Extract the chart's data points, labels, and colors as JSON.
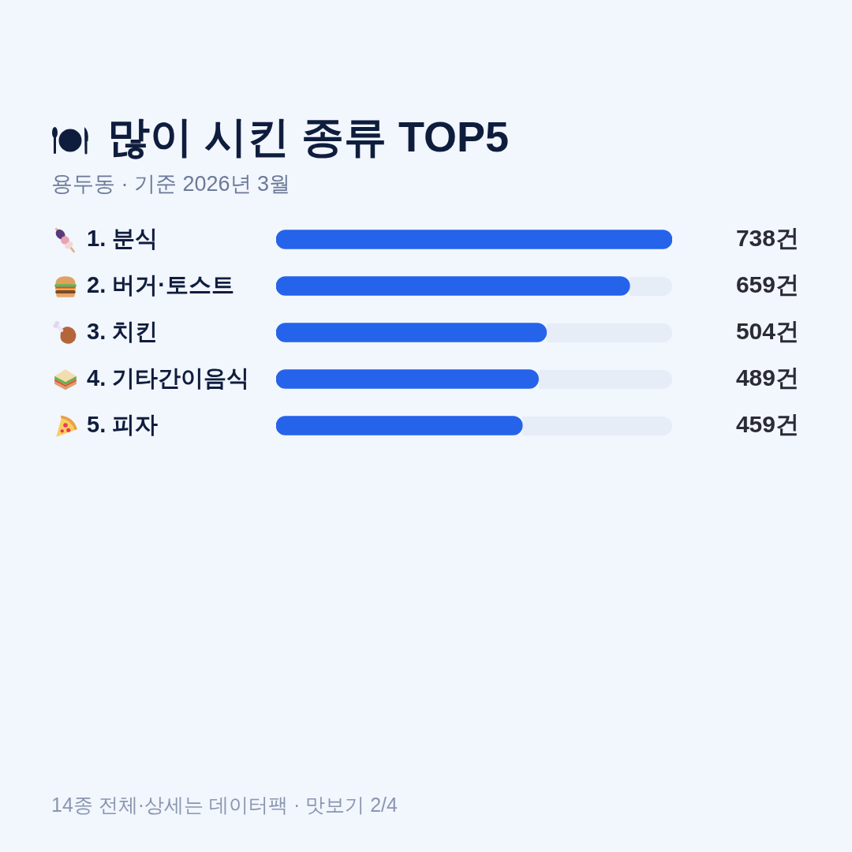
{
  "chart_data": {
    "type": "bar",
    "orientation": "horizontal",
    "title": "많이 시킨 종류 TOP5",
    "subtitle": "용두동 · 기준 2026년 3월",
    "categories": [
      "1. 분식",
      "2. 버거·토스트",
      "3. 치킨",
      "4. 기타간이음식",
      "5. 피자"
    ],
    "values": [
      738,
      659,
      504,
      489,
      459
    ],
    "color": "#2563eb",
    "xlim": [
      0,
      738
    ],
    "value_labels": [
      "738건",
      "659건",
      "504건",
      "489건",
      "459건"
    ],
    "annotations": [
      "14종 전체·상세는 데이터팩 · 맛보기 2/4"
    ]
  }
}
